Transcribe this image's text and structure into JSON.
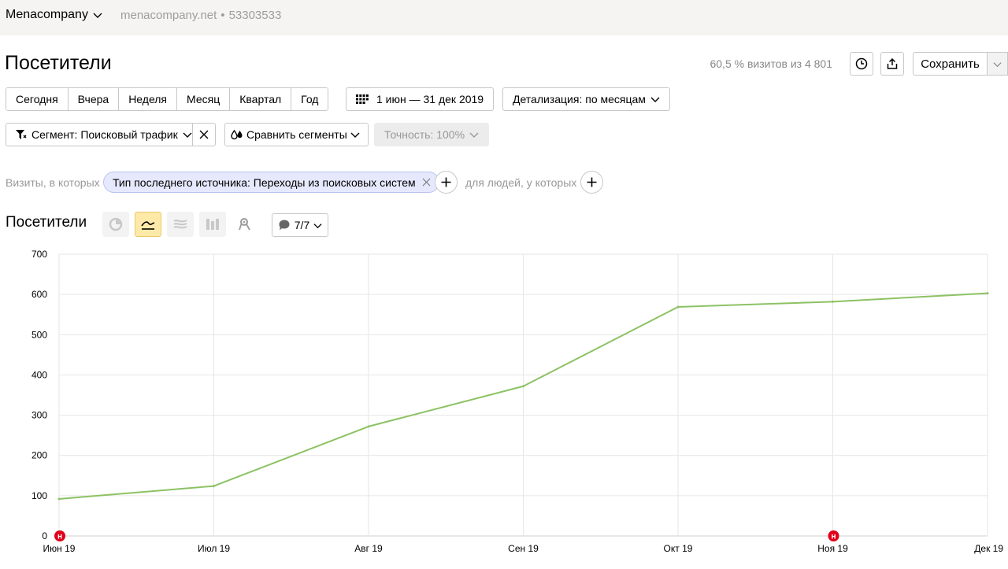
{
  "header": {
    "counter_name": "Menacompany",
    "site": "menacompany.net",
    "separator": "•",
    "counter_id": "53303533"
  },
  "page": {
    "title": "Посетители",
    "visits_info": "60,5 % визитов из 4 801",
    "save_label": "Сохранить"
  },
  "period": {
    "buttons": [
      "Сегодня",
      "Вчера",
      "Неделя",
      "Месяц",
      "Квартал",
      "Год"
    ],
    "date_range": "1 июн — 31 дек 2019",
    "detail": "Детализация: по месяцам"
  },
  "segment": {
    "label": "Сегмент: Поисковый трафик",
    "compare": "Сравнить сегменты",
    "accuracy": "Точность: 100%"
  },
  "filters": {
    "visits_label": "Визиты, в которых",
    "condition": "Тип последнего источника: Переходы из поисковых систем",
    "people_label": "для людей, у которых"
  },
  "chart_section": {
    "title": "Посетители",
    "notes_label": "7/7",
    "note_marker": "н"
  },
  "colors": {
    "line": "#8cc264",
    "note_marker": "#e0001a",
    "active_viz": "#ffe9a8",
    "chip": "#e6e9fd"
  },
  "chart_data": {
    "type": "line",
    "categories": [
      "Июн 19",
      "Июл 19",
      "Авг 19",
      "Сен 19",
      "Окт 19",
      "Ноя 19",
      "Дек 19"
    ],
    "series": [
      {
        "values": [
          92,
          124,
          272,
          372,
          569,
          582,
          603
        ]
      }
    ],
    "yticks": [
      0,
      100,
      200,
      300,
      400,
      500,
      600,
      700
    ],
    "ylim": [
      0,
      700
    ],
    "grid": true,
    "notes_on": [
      "Июн 19",
      "Ноя 19"
    ]
  }
}
